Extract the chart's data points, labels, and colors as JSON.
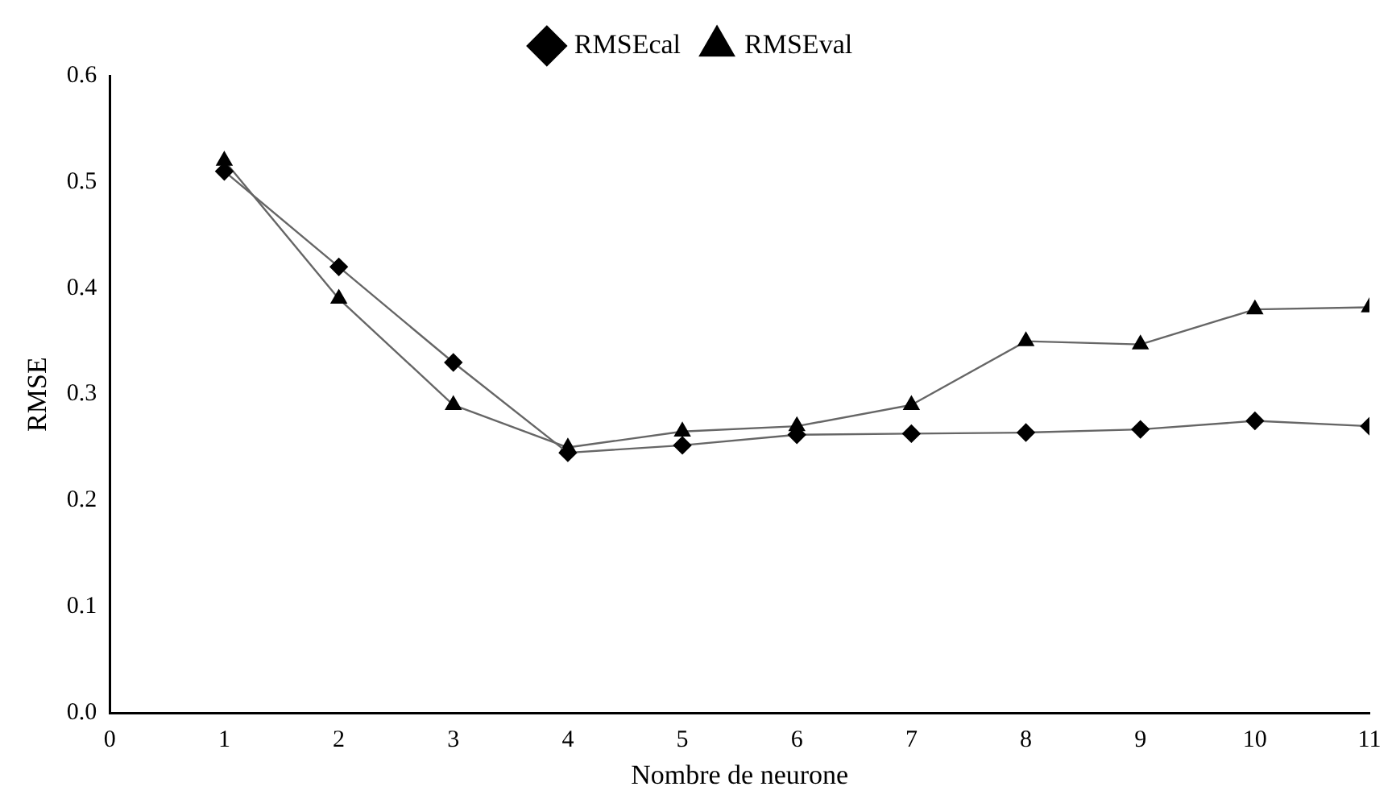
{
  "chart_data": {
    "type": "line",
    "xlabel": "Nombre de neurone",
    "ylabel": "RMSE",
    "x": [
      1,
      2,
      3,
      4,
      5,
      6,
      7,
      8,
      9,
      10,
      11
    ],
    "series": [
      {
        "name": "RMSEcal",
        "color": "#000000",
        "marker": "diamond",
        "values": [
          0.51,
          0.42,
          0.33,
          0.245,
          0.252,
          0.262,
          0.263,
          0.264,
          0.267,
          0.275,
          0.27
        ]
      },
      {
        "name": "RMSEval",
        "color": "#000000",
        "marker": "triangle",
        "values": [
          0.52,
          0.39,
          0.29,
          0.25,
          0.265,
          0.27,
          0.29,
          0.35,
          0.347,
          0.38,
          0.382
        ]
      }
    ],
    "xlim": [
      0,
      11
    ],
    "xticks": [
      0,
      1,
      2,
      3,
      4,
      5,
      6,
      7,
      8,
      9,
      10,
      11
    ],
    "ylim": [
      0,
      0.6
    ],
    "yticks": [
      {
        "value": 0,
        "label": "0.0"
      },
      0.1,
      0.2,
      0.3,
      0.4,
      0.5,
      0.6
    ],
    "grid": false,
    "legend": "top",
    "line_style": "solid"
  }
}
